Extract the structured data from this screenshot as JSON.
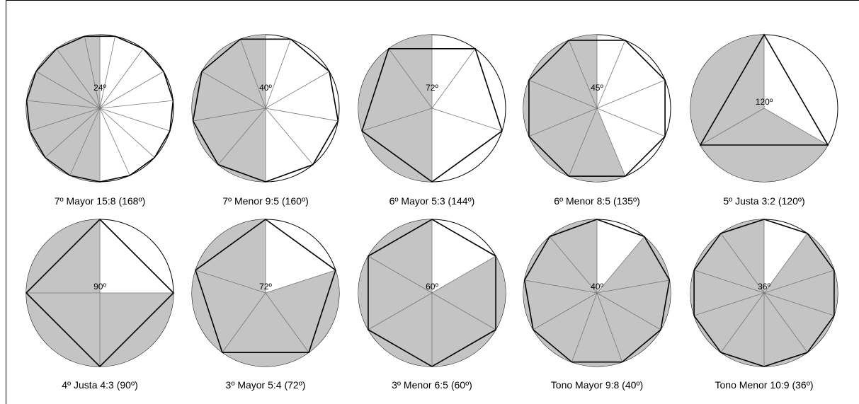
{
  "figures": [
    {
      "caption": "7º Mayor 15:8 (168º)",
      "angle_label": "24º",
      "sides": 15,
      "shaded_sectors": 8,
      "rotation": "right-edge-top"
    },
    {
      "caption": "7º Menor 9:5 (160º)",
      "angle_label": "40º",
      "sides": 9,
      "shaded_sectors": 5,
      "rotation": "right-edge-top"
    },
    {
      "caption": "6º Mayor 5:3 (144º)",
      "angle_label": "72º",
      "sides": 5,
      "shaded_sectors": 3,
      "rotation": "right-edge-top"
    },
    {
      "caption": "6º Menor 8:5 (135º)",
      "angle_label": "45º",
      "sides": 8,
      "shaded_sectors": 5,
      "rotation": "right-edge-top"
    },
    {
      "caption": "5º Justa 3:2 (120º)",
      "angle_label": "120º",
      "sides": 3,
      "shaded_sectors": 2,
      "rotation": "vertex-top"
    },
    {
      "caption": "4º Justa 4:3 (90º)",
      "angle_label": "90º",
      "sides": 4,
      "shaded_sectors": 3,
      "rotation": "vertex-top"
    },
    {
      "caption": "3º Mayor 5:4 (72º)",
      "angle_label": "72º",
      "sides": 5,
      "shaded_sectors": 4,
      "rotation": "vertex-top"
    },
    {
      "caption": "3º Menor 6:5 (60º)",
      "angle_label": "60º",
      "sides": 6,
      "shaded_sectors": 5,
      "rotation": "vertex-top"
    },
    {
      "caption": "Tono Mayor 9:8 (40º)",
      "angle_label": "40º",
      "sides": 9,
      "shaded_sectors": 8,
      "rotation": "vertex-top"
    },
    {
      "caption": "Tono Menor 10:9 (36º)",
      "angle_label": "36º",
      "sides": 10,
      "shaded_sectors": 9,
      "rotation": "vertex-top"
    }
  ],
  "colors": {
    "shade": "#c4c4c4",
    "line": "#000000",
    "spoke": "#777777"
  }
}
